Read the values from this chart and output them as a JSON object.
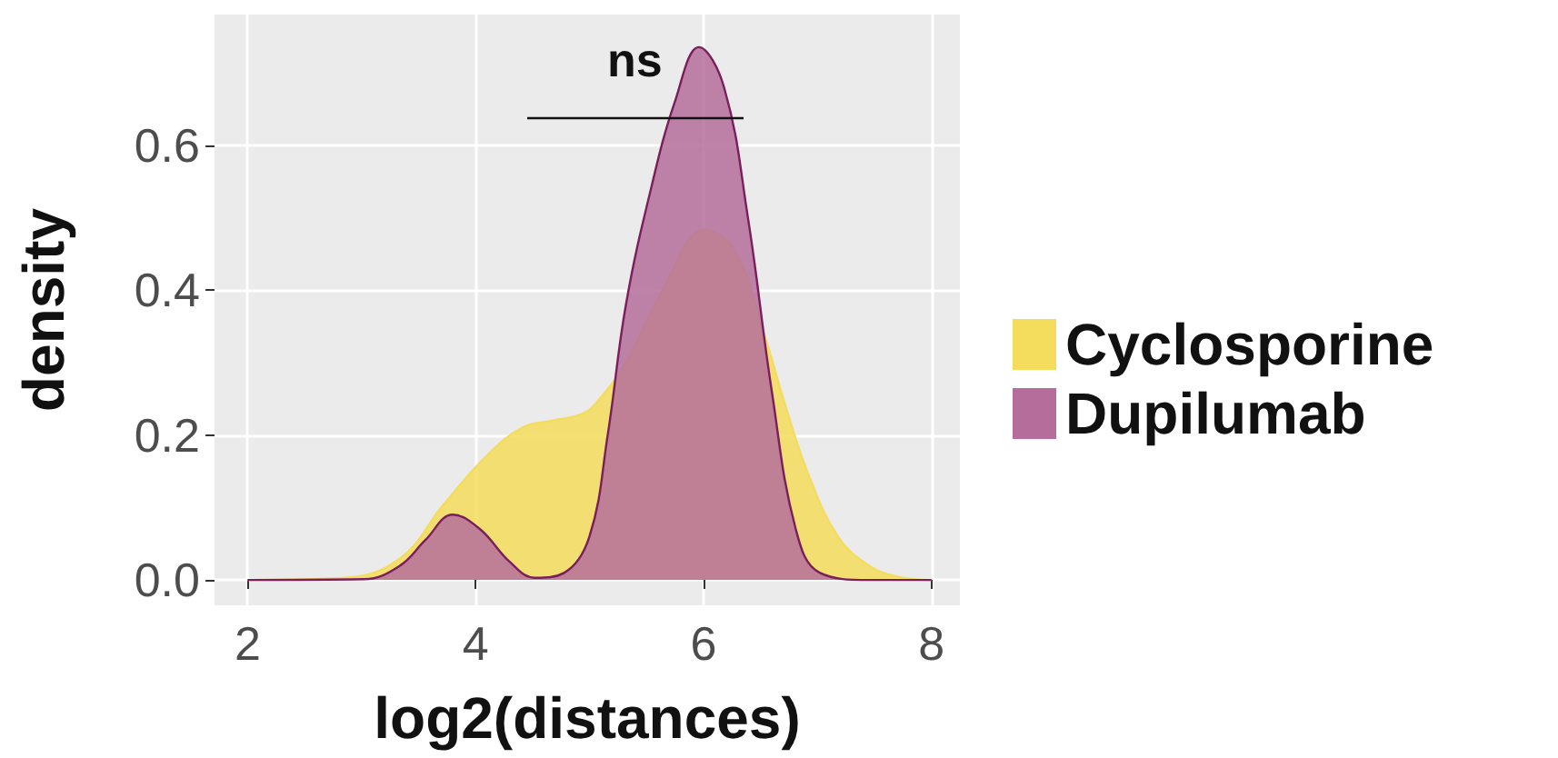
{
  "chart_data": {
    "type": "area",
    "xlabel": "log2(distances)",
    "ylabel": "density",
    "xlim": [
      1.71,
      8.25
    ],
    "ylim": [
      -0.035,
      0.78
    ],
    "xticks": [
      2,
      4,
      6,
      8
    ],
    "yticks": [
      {
        "value": 0,
        "label": "0.0"
      },
      0.2,
      0.4,
      0.6
    ],
    "grid": true,
    "legend": "right",
    "marker": "none",
    "annotations": [
      "ns"
    ],
    "series": [
      {
        "name": "Cyclosporine",
        "color": "#f4dc5c",
        "x": [
          2.0,
          2.86,
          3.34,
          3.72,
          4.09,
          4.41,
          4.68,
          4.95,
          5.11,
          5.32,
          5.64,
          6.01,
          6.28,
          6.55,
          6.71,
          6.92,
          7.18,
          7.45,
          7.72,
          8.0
        ],
        "values": [
          0,
          0.003,
          0.03,
          0.104,
          0.17,
          0.21,
          0.22,
          0.23,
          0.254,
          0.3,
          0.4,
          0.483,
          0.454,
          0.33,
          0.245,
          0.146,
          0.06,
          0.02,
          0.004,
          0
        ]
      },
      {
        "name": "Dupilumab",
        "color": "#b56e9b",
        "x": [
          2.0,
          3.02,
          3.34,
          3.56,
          3.8,
          4.04,
          4.3,
          4.52,
          4.78,
          5.0,
          5.16,
          5.32,
          5.54,
          5.75,
          5.96,
          6.18,
          6.39,
          6.6,
          6.81,
          7.02,
          7.45,
          8.0
        ],
        "values": [
          0,
          0.001,
          0.02,
          0.055,
          0.09,
          0.07,
          0.025,
          0.003,
          0.01,
          0.06,
          0.2,
          0.38,
          0.54,
          0.66,
          0.735,
          0.68,
          0.5,
          0.26,
          0.07,
          0.01,
          0,
          0
        ]
      }
    ]
  }
}
